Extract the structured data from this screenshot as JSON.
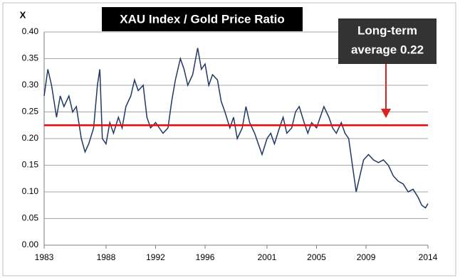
{
  "chart_data": {
    "type": "line",
    "title": "XAU Index / Gold Price Ratio",
    "y_label": "X",
    "annotation": [
      "Long-term",
      "average 0.22"
    ],
    "reference_line": {
      "value": 0.225,
      "color": "#ff0000"
    },
    "x": [
      1983.0,
      1983.3,
      1983.6,
      1984.0,
      1984.3,
      1984.6,
      1985.0,
      1985.3,
      1985.6,
      1986.0,
      1986.3,
      1986.6,
      1987.0,
      1987.3,
      1987.5,
      1987.7,
      1988.0,
      1988.3,
      1988.6,
      1989.0,
      1989.3,
      1989.6,
      1990.0,
      1990.3,
      1990.6,
      1991.0,
      1991.3,
      1991.6,
      1992.0,
      1992.3,
      1992.6,
      1993.0,
      1993.3,
      1993.6,
      1994.0,
      1994.3,
      1994.6,
      1995.0,
      1995.4,
      1995.7,
      1996.0,
      1996.3,
      1996.6,
      1997.0,
      1997.3,
      1997.6,
      1998.0,
      1998.3,
      1998.6,
      1999.0,
      1999.3,
      1999.6,
      2000.0,
      2000.3,
      2000.6,
      2001.0,
      2001.3,
      2001.6,
      2002.0,
      2002.3,
      2002.6,
      2003.0,
      2003.3,
      2003.6,
      2004.0,
      2004.3,
      2004.6,
      2005.0,
      2005.3,
      2005.6,
      2006.0,
      2006.3,
      2006.6,
      2007.0,
      2007.3,
      2007.6,
      2007.9,
      2008.2,
      2008.5,
      2008.8,
      2009.2,
      2009.6,
      2010.0,
      2010.4,
      2010.8,
      2011.2,
      2011.6,
      2012.0,
      2012.4,
      2012.8,
      2013.2,
      2013.5,
      2013.8,
      2014.0
    ],
    "series": [
      {
        "color": "#1f3864",
        "values": [
          0.28,
          0.33,
          0.3,
          0.24,
          0.28,
          0.26,
          0.28,
          0.25,
          0.26,
          0.2,
          0.175,
          0.19,
          0.22,
          0.3,
          0.33,
          0.2,
          0.19,
          0.23,
          0.21,
          0.24,
          0.22,
          0.26,
          0.28,
          0.31,
          0.29,
          0.3,
          0.24,
          0.22,
          0.23,
          0.22,
          0.21,
          0.22,
          0.27,
          0.31,
          0.35,
          0.33,
          0.3,
          0.32,
          0.37,
          0.33,
          0.34,
          0.3,
          0.32,
          0.31,
          0.27,
          0.25,
          0.22,
          0.24,
          0.2,
          0.22,
          0.26,
          0.23,
          0.21,
          0.19,
          0.17,
          0.2,
          0.21,
          0.19,
          0.22,
          0.24,
          0.21,
          0.22,
          0.25,
          0.26,
          0.23,
          0.21,
          0.23,
          0.22,
          0.24,
          0.26,
          0.24,
          0.22,
          0.21,
          0.23,
          0.21,
          0.2,
          0.15,
          0.1,
          0.13,
          0.16,
          0.17,
          0.16,
          0.155,
          0.16,
          0.15,
          0.13,
          0.12,
          0.115,
          0.1,
          0.105,
          0.09,
          0.075,
          0.07,
          0.078
        ]
      }
    ],
    "xlim": [
      1983,
      2014
    ],
    "xticks": [
      1983,
      1988,
      1992,
      1996,
      2001,
      2005,
      2009,
      2014
    ],
    "ylim": [
      0,
      0.4
    ],
    "yticks": [
      {
        "value": 0,
        "label": "0.00"
      },
      0.05,
      {
        "value": 0.1,
        "label": "0.10"
      },
      0.15,
      {
        "value": 0.2,
        "label": "0.20"
      },
      0.25,
      {
        "value": 0.3,
        "label": "0.30"
      },
      0.35,
      {
        "value": 0.4,
        "label": "0.40"
      }
    ],
    "grid": true
  }
}
